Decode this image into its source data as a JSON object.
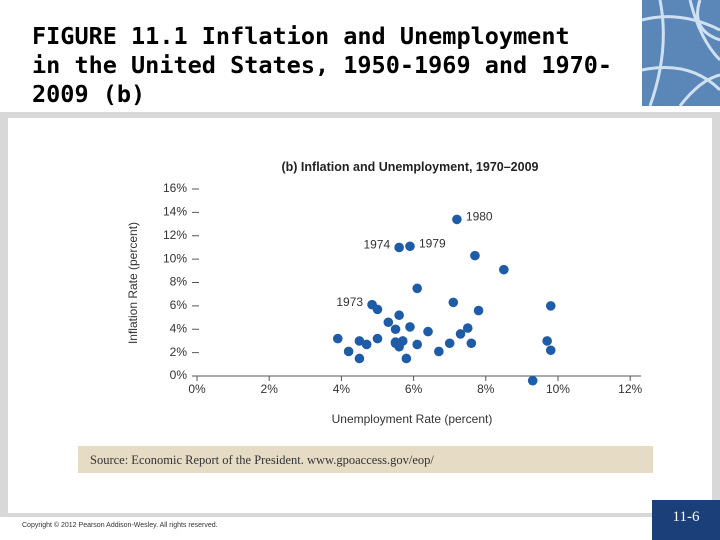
{
  "slide": {
    "title": [
      "FIGURE 11.1  Inflation and Unemployment",
      "in the United States, 1950-1969 and 1970-",
      "2009 (b)"
    ],
    "copyright": "Copyright © 2012 Pearson Addison-Wesley. All rights reserved.",
    "page_number": "11-6"
  },
  "chart_data": {
    "type": "scatter",
    "title": "(b) Inflation and Unemployment, 1970–2009",
    "x_label": "Unemployment Rate (percent)",
    "y_label": "Inflation Rate (percent)",
    "source": "Source: Economic Report of the President. www.gpoaccess.gov/eop/",
    "color": "#1f5ca8",
    "x": [
      7.2,
      5.6,
      5.9,
      7.7,
      8.5,
      6.1,
      4.85,
      5.0,
      7.1,
      7.8,
      9.8,
      5.6,
      5.3,
      3.9,
      4.2,
      4.5,
      4.7,
      5.0,
      5.5,
      5.9,
      5.5,
      5.6,
      5.5,
      5.7,
      6.1,
      6.4,
      7.0,
      7.3,
      7.5,
      7.6,
      5.8,
      4.5,
      9.7,
      9.8,
      9.3,
      6.7
    ],
    "values": [
      13.4,
      11.0,
      11.1,
      10.3,
      9.1,
      7.5,
      6.1,
      5.7,
      6.3,
      5.6,
      6.0,
      5.2,
      4.6,
      3.2,
      2.1,
      3.0,
      2.7,
      3.2,
      4.0,
      4.2,
      2.8,
      2.5,
      2.9,
      3.0,
      2.7,
      3.8,
      2.8,
      3.6,
      4.1,
      2.8,
      1.5,
      1.5,
      3.0,
      2.2,
      -0.4,
      2.1
    ],
    "point_labels": [
      "1980",
      "1974",
      "1979",
      null,
      null,
      null,
      "1973",
      null,
      null,
      null,
      null,
      null,
      null,
      null,
      null,
      null,
      null,
      null,
      null,
      null,
      null,
      null,
      null,
      null,
      null,
      null,
      null,
      null,
      null,
      null,
      null,
      null,
      null,
      null,
      null,
      null
    ],
    "xlim": [
      0,
      12.3
    ],
    "ylim": [
      0,
      16
    ],
    "xticks": [
      {
        "value": 0,
        "label": "0%"
      },
      {
        "value": 2,
        "label": "2%"
      },
      {
        "value": 4,
        "label": "4%"
      },
      {
        "value": 6,
        "label": "6%"
      },
      {
        "value": 8,
        "label": "8%"
      },
      {
        "value": 10,
        "label": "10%"
      },
      {
        "value": 12,
        "label": "12%"
      }
    ],
    "yticks": [
      {
        "value": 0,
        "label": "0%"
      },
      {
        "value": 2,
        "label": "2%"
      },
      {
        "value": 4,
        "label": "4%"
      },
      {
        "value": 6,
        "label": "6%"
      },
      {
        "value": 8,
        "label": "8%"
      },
      {
        "value": 10,
        "label": "10%"
      },
      {
        "value": 12,
        "label": "12%"
      },
      {
        "value": 14,
        "label": "14%"
      },
      {
        "value": 16,
        "label": "16%"
      }
    ]
  }
}
